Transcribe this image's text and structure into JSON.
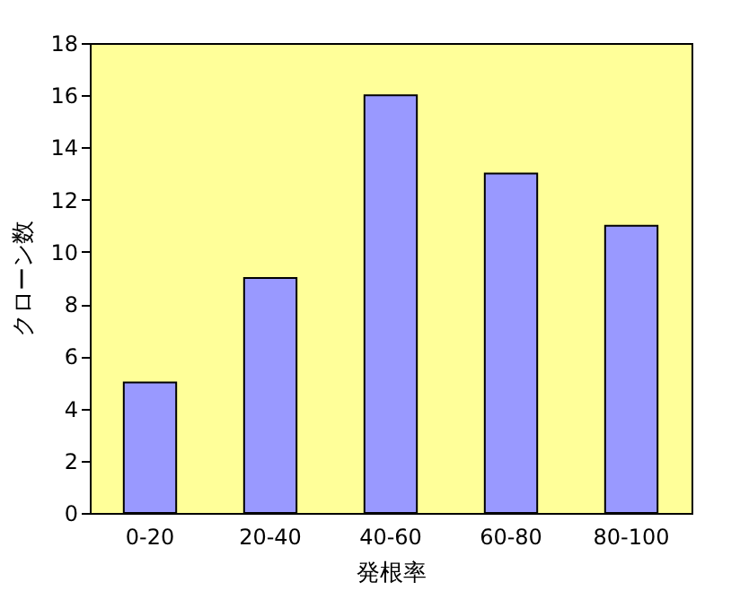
{
  "chart_data": {
    "type": "bar",
    "xlabel": "発根率",
    "ylabel": "クローン数",
    "categories": [
      "0-20",
      "20-40",
      "40-60",
      "60-80",
      "80-100"
    ],
    "values": [
      5,
      9,
      16,
      13,
      11
    ],
    "color": "#9999ff",
    "ylim": [
      0,
      18
    ],
    "yticks": [
      0,
      2,
      4,
      6,
      8,
      10,
      12,
      14,
      16,
      18
    ],
    "grid": false
  }
}
